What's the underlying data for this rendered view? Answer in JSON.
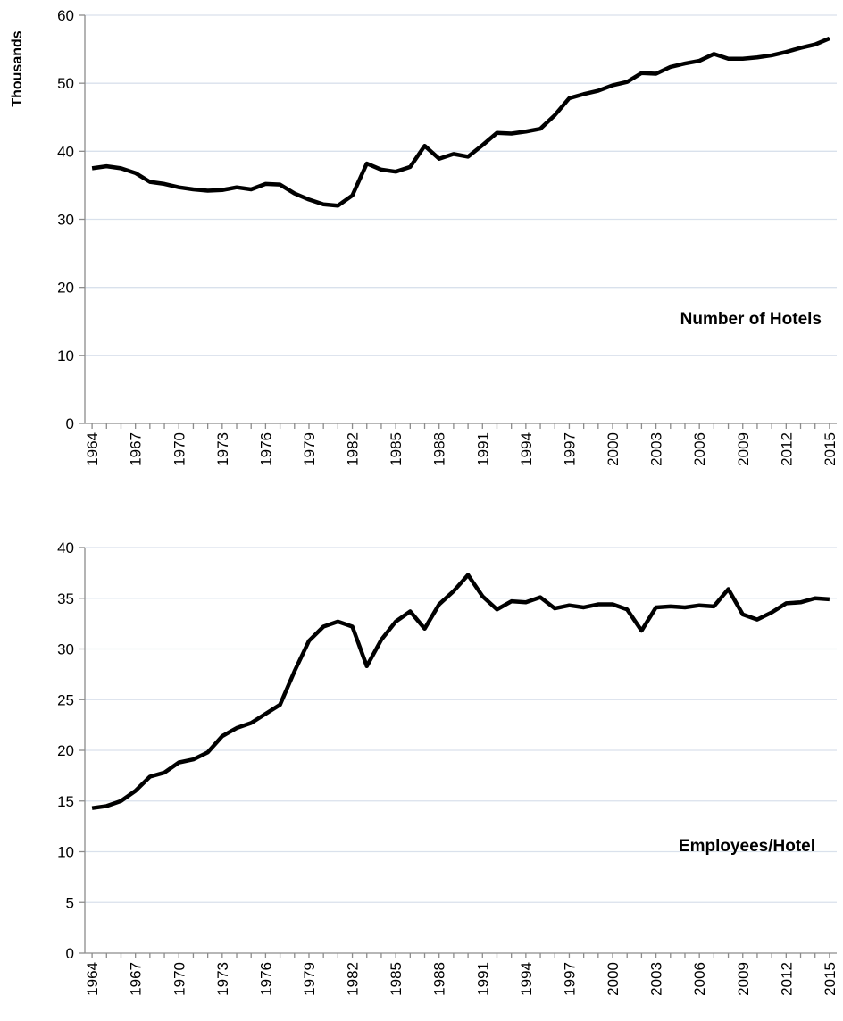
{
  "chart_data": [
    {
      "type": "line",
      "y_label": "Thousands",
      "annotation": "Number of Hotels",
      "color": "#000000",
      "grid": true,
      "x": [
        1964,
        1965,
        1966,
        1967,
        1968,
        1969,
        1970,
        1971,
        1972,
        1973,
        1974,
        1975,
        1976,
        1977,
        1978,
        1979,
        1980,
        1981,
        1982,
        1983,
        1984,
        1985,
        1986,
        1987,
        1988,
        1989,
        1990,
        1991,
        1992,
        1993,
        1994,
        1995,
        1996,
        1997,
        1998,
        1999,
        2000,
        2001,
        2002,
        2003,
        2004,
        2005,
        2006,
        2007,
        2008,
        2009,
        2010,
        2011,
        2012,
        2013,
        2014,
        2015
      ],
      "values": [
        37.5,
        37.8,
        37.5,
        36.8,
        35.5,
        35.2,
        34.7,
        34.4,
        34.2,
        34.3,
        34.7,
        34.4,
        35.2,
        35.1,
        33.8,
        32.9,
        32.2,
        32.0,
        33.5,
        38.2,
        37.3,
        37.0,
        37.7,
        40.8,
        38.9,
        39.6,
        39.2,
        40.9,
        42.7,
        42.6,
        42.9,
        43.3,
        45.3,
        47.8,
        48.4,
        48.9,
        49.7,
        50.2,
        51.5,
        51.4,
        52.4,
        52.9,
        53.3,
        54.3,
        53.6,
        53.6,
        53.8,
        54.1,
        54.6,
        55.2,
        55.7,
        56.6
      ],
      "xlim": [
        1963.5,
        2015.5
      ],
      "xticks": [
        1964,
        1967,
        1970,
        1973,
        1976,
        1979,
        1982,
        1985,
        1988,
        1991,
        1994,
        1997,
        2000,
        2003,
        2006,
        2009,
        2012,
        2015
      ],
      "ylim": [
        0,
        60
      ],
      "yticks": [
        0,
        10,
        20,
        30,
        40,
        50,
        60
      ]
    },
    {
      "type": "line",
      "annotation": "Employees/Hotel",
      "color": "#000000",
      "grid": true,
      "x": [
        1964,
        1965,
        1966,
        1967,
        1968,
        1969,
        1970,
        1971,
        1972,
        1973,
        1974,
        1975,
        1976,
        1977,
        1978,
        1979,
        1980,
        1981,
        1982,
        1983,
        1984,
        1985,
        1986,
        1987,
        1988,
        1989,
        1990,
        1991,
        1992,
        1993,
        1994,
        1995,
        1996,
        1997,
        1998,
        1999,
        2000,
        2001,
        2002,
        2003,
        2004,
        2005,
        2006,
        2007,
        2008,
        2009,
        2010,
        2011,
        2012,
        2013,
        2014,
        2015
      ],
      "values": [
        14.3,
        14.5,
        15.0,
        16.0,
        17.4,
        17.8,
        18.8,
        19.1,
        19.8,
        21.4,
        22.2,
        22.7,
        23.6,
        24.5,
        27.8,
        30.8,
        32.2,
        32.7,
        32.2,
        28.3,
        30.9,
        32.7,
        33.7,
        32.0,
        34.4,
        35.7,
        37.3,
        35.2,
        33.9,
        34.7,
        34.6,
        35.1,
        34.0,
        34.3,
        34.1,
        34.4,
        34.4,
        33.9,
        31.8,
        34.1,
        34.2,
        34.1,
        34.3,
        34.2,
        35.9,
        33.4,
        32.9,
        33.6,
        34.5,
        34.6,
        35.0,
        34.9
      ],
      "xlim": [
        1963.5,
        2015.5
      ],
      "xticks": [
        1964,
        1967,
        1970,
        1973,
        1976,
        1979,
        1982,
        1985,
        1988,
        1991,
        1994,
        1997,
        2000,
        2003,
        2006,
        2009,
        2012,
        2015
      ],
      "ylim": [
        0,
        40
      ],
      "yticks": [
        0,
        5,
        10,
        15,
        20,
        25,
        30,
        35,
        40
      ]
    }
  ]
}
